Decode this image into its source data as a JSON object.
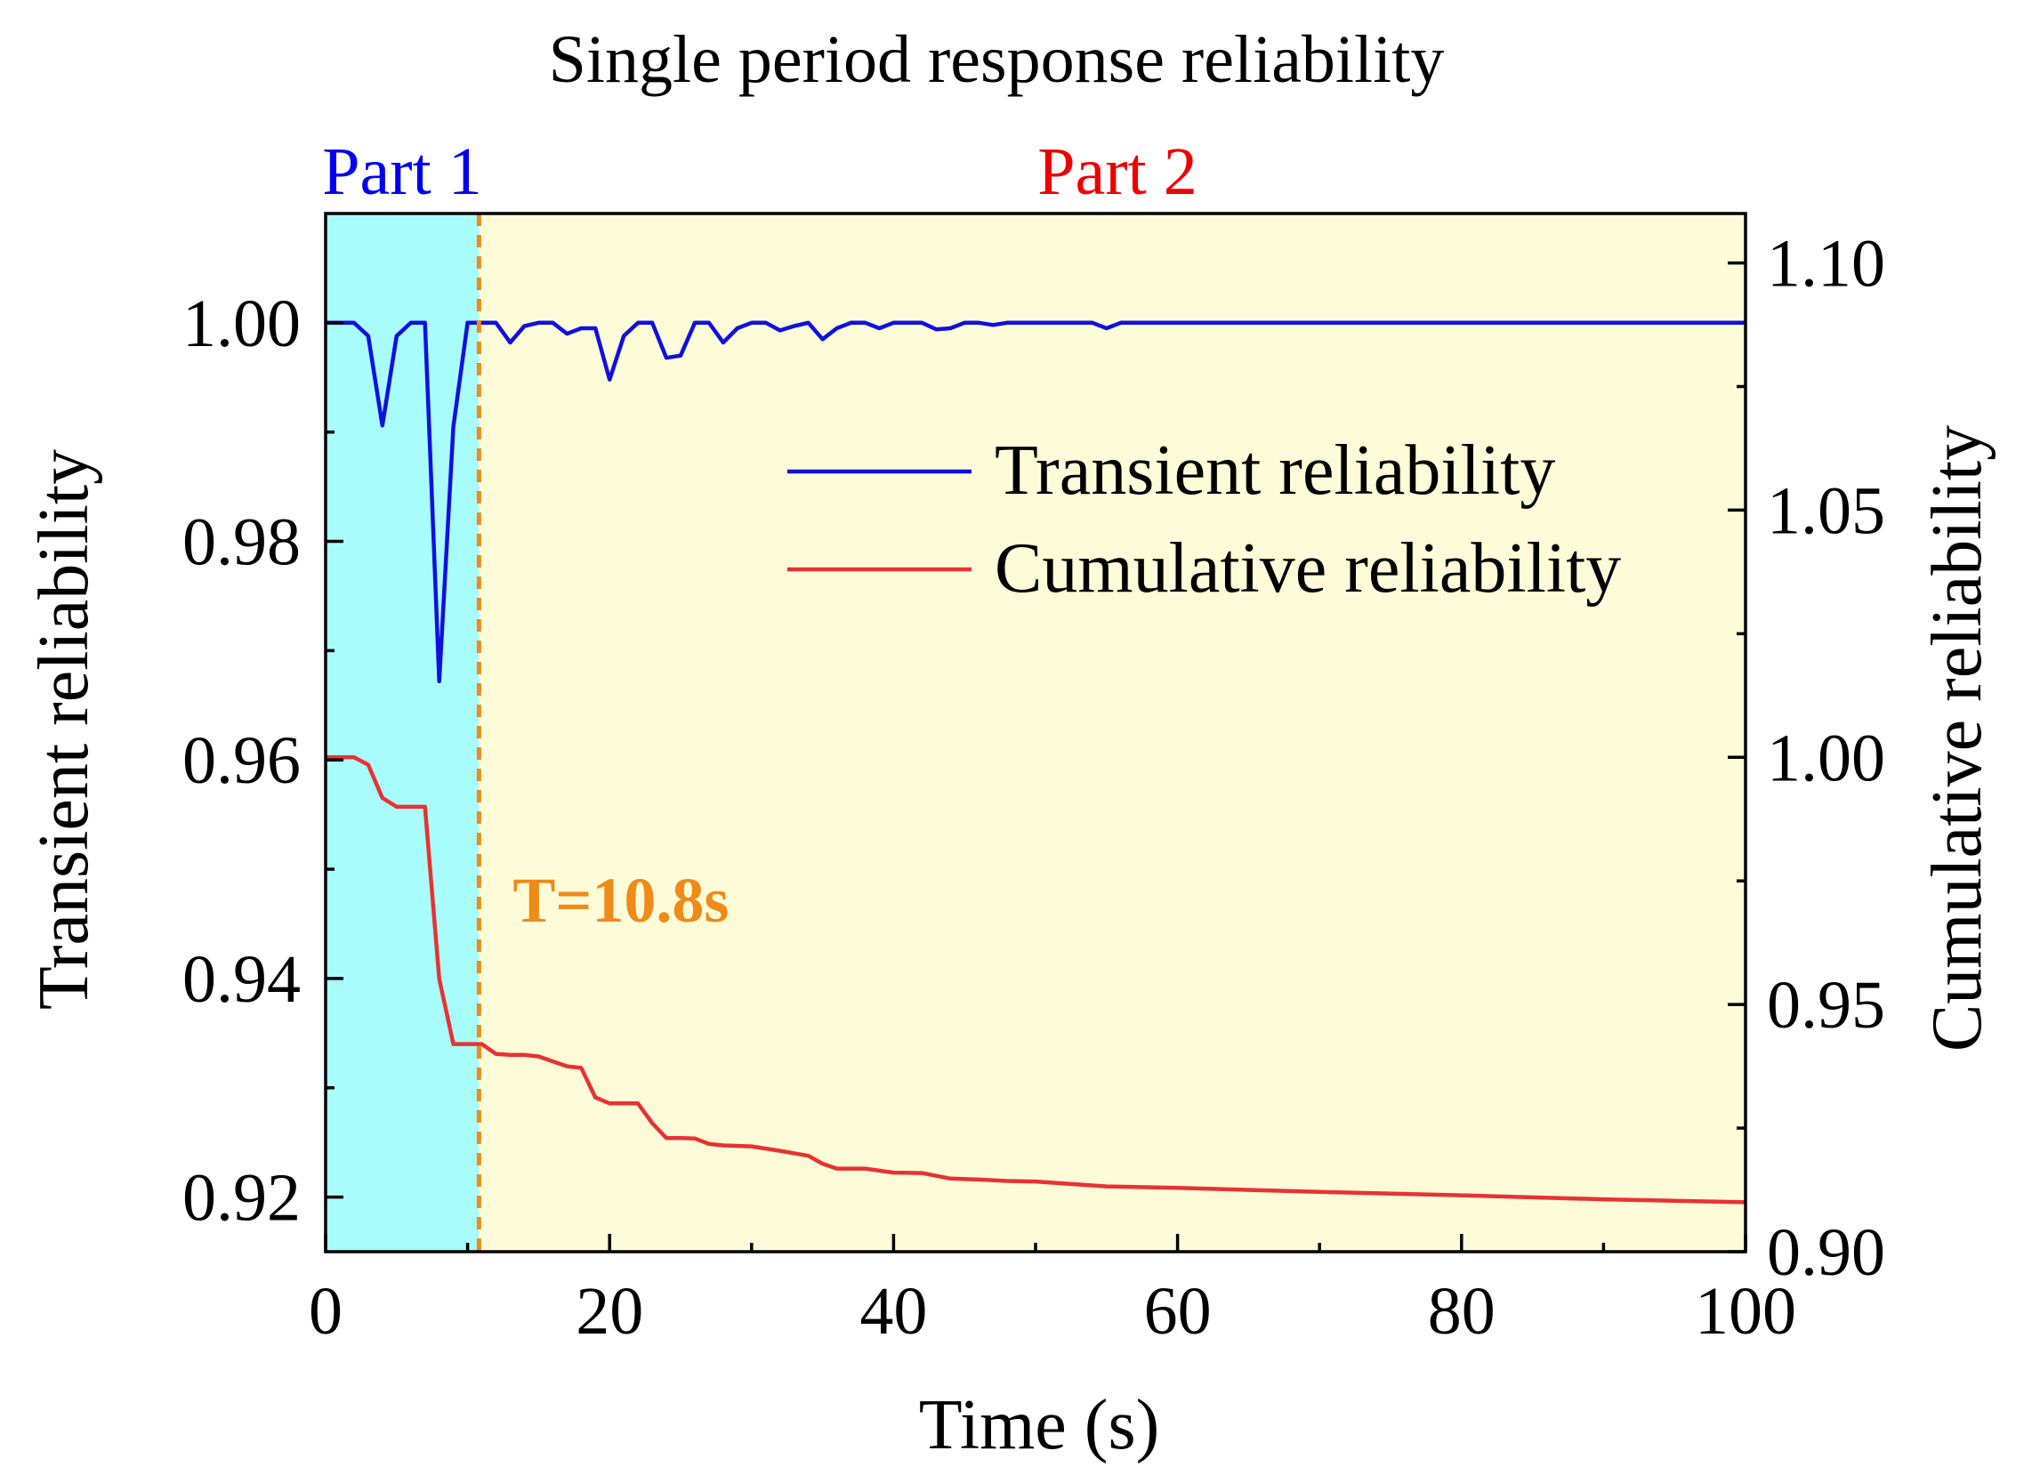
{
  "chart_data": {
    "type": "line",
    "title": "Single period response reliability",
    "xlabel": "Time (s)",
    "ylabel_left": "Transient reliability",
    "ylabel_right": "Cumulative reliability",
    "xlim": [
      0,
      100
    ],
    "ylim_left": [
      0.915,
      1.01
    ],
    "ylim_right": [
      0.9,
      1.11
    ],
    "x_ticks": [
      0,
      20,
      40,
      60,
      80,
      100
    ],
    "x_tick_labels": [
      "0",
      "20",
      "40",
      "60",
      "80",
      "100"
    ],
    "y_left_ticks": [
      0.92,
      0.94,
      0.96,
      0.98,
      1.0
    ],
    "y_left_tick_labels": [
      "0.92",
      "0.94",
      "0.96",
      "0.98",
      "1.00"
    ],
    "y_right_ticks": [
      0.9,
      0.95,
      1.0,
      1.05,
      1.1
    ],
    "y_right_tick_labels": [
      "0.90",
      "0.95",
      "1.00",
      "1.05",
      "1.10"
    ],
    "regions": [
      {
        "name": "Part 1",
        "x_start": 0,
        "x_end": 10.8,
        "color": "#a8fcfc",
        "label_color": "#0000ee"
      },
      {
        "name": "Part 2",
        "x_start": 10.8,
        "x_end": 100,
        "color": "#fefcd8",
        "label_color": "#ee0000"
      }
    ],
    "divider": {
      "x": 10.8,
      "label": "T=10.8s",
      "color": "#f08a18"
    },
    "legend_position": "upper-right",
    "series": [
      {
        "name": "Transient reliability",
        "axis": "left",
        "color": "#1010e0",
        "x": [
          0,
          1,
          2,
          3,
          4,
          5,
          6,
          7,
          8,
          9,
          10,
          11,
          12,
          13,
          14,
          15,
          16,
          17,
          18,
          19,
          20,
          21,
          22,
          23,
          24,
          25,
          26,
          27,
          28,
          29,
          30,
          31,
          32,
          33,
          34,
          35,
          36,
          37,
          38,
          39,
          40,
          41,
          42,
          43,
          44,
          45,
          46,
          47,
          48,
          50,
          52,
          54,
          55,
          56,
          58,
          60,
          65,
          70,
          75,
          80,
          85,
          90,
          95,
          100
        ],
        "y": [
          1.0,
          1.0,
          1.0,
          0.9988,
          0.9906,
          0.9988,
          1.0,
          1.0,
          0.9672,
          0.9905,
          1.0,
          1.0,
          1.0,
          0.9982,
          0.9997,
          1.0,
          1.0,
          0.999,
          0.9995,
          0.9995,
          0.9948,
          0.9988,
          1.0,
          1.0,
          0.9968,
          0.997,
          1.0,
          1.0,
          0.9982,
          0.9995,
          1.0,
          1.0,
          0.9993,
          0.9997,
          1.0,
          0.9985,
          0.9995,
          1.0,
          1.0,
          0.9995,
          1.0,
          1.0,
          1.0,
          0.9994,
          0.9995,
          1.0,
          1.0,
          0.9998,
          1.0,
          1.0,
          1.0,
          1.0,
          0.9995,
          1.0,
          1.0,
          1.0,
          1.0,
          1.0,
          1.0,
          1.0,
          1.0,
          1.0,
          1.0,
          1.0
        ]
      },
      {
        "name": "Cumulative reliability",
        "axis": "right",
        "color": "#e83232",
        "x": [
          0,
          1,
          2,
          3,
          4,
          5,
          6,
          7,
          8,
          9,
          10,
          11,
          12,
          13,
          14,
          15,
          16,
          17,
          18,
          19,
          20,
          21,
          22,
          23,
          24,
          25,
          26,
          27,
          28,
          30,
          32,
          34,
          35,
          36,
          38,
          40,
          42,
          44,
          46,
          48,
          50,
          55,
          60,
          70,
          80,
          90,
          100
        ],
        "y": [
          1.0,
          1.0,
          1.0,
          0.9985,
          0.9918,
          0.99,
          0.99,
          0.99,
          0.9552,
          0.942,
          0.942,
          0.942,
          0.94,
          0.9398,
          0.9398,
          0.9395,
          0.9385,
          0.9375,
          0.9372,
          0.9312,
          0.93,
          0.93,
          0.93,
          0.926,
          0.923,
          0.923,
          0.9229,
          0.9218,
          0.9215,
          0.9213,
          0.9204,
          0.9194,
          0.9178,
          0.9168,
          0.9168,
          0.916,
          0.9159,
          0.9148,
          0.9146,
          0.9143,
          0.9142,
          0.9132,
          0.9129,
          0.9121,
          0.9114,
          0.9106,
          0.91
        ]
      }
    ]
  }
}
